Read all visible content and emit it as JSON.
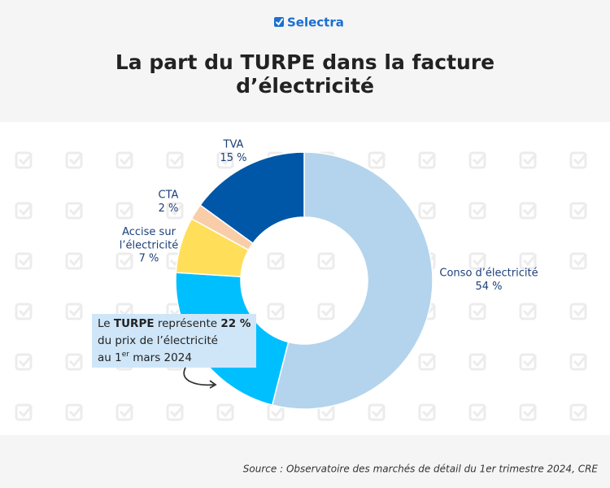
{
  "header": {
    "brand": "Selectra"
  },
  "chart_data": {
    "type": "donut",
    "title": [
      "La part du TURPE dans la facture",
      "d’électricité"
    ],
    "categories": [
      "Conso d’électricité",
      "TURPE",
      "Accise sur l’électricité",
      "CTA",
      "TVA"
    ],
    "values": [
      54,
      22,
      7,
      2,
      15
    ],
    "value_labels": [
      "54 %",
      "22 %",
      "7 %",
      "2 %",
      "15 %"
    ],
    "colors": [
      "#b3d4ec",
      "#00bfff",
      "#ffdf5a",
      "#f9cda8",
      "#0057a8"
    ],
    "annotation": [
      "Le ",
      " représente ",
      "du prix de l’électricité",
      "au 1",
      "er",
      " mars 2024"
    ],
    "source": "Source : Observatoire des marchés de détail du 1er trimestre 2024, CRE"
  }
}
